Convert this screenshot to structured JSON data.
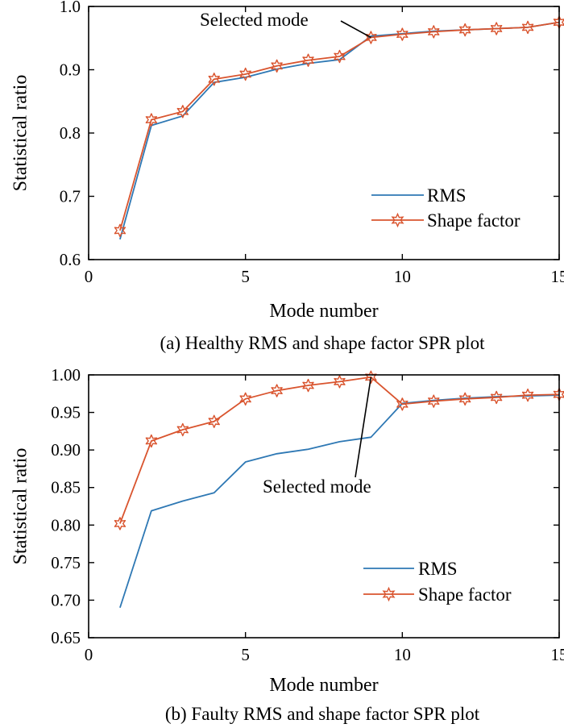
{
  "chart_data": [
    {
      "type": "line",
      "caption": "(a) Healthy RMS and shape factor SPR plot",
      "xlabel": "Mode number",
      "ylabel": "Statistical ratio",
      "xlim": [
        0,
        15
      ],
      "ylim": [
        0.6,
        1.0
      ],
      "xticks": [
        0,
        5,
        10,
        15
      ],
      "xtick_labels": [
        "0",
        "5",
        "10",
        "15"
      ],
      "yticks": [
        0.6,
        0.7,
        0.8,
        0.9,
        1.0
      ],
      "ytick_labels": [
        "0.6",
        "0.7",
        "0.8",
        "0.9",
        "1.0"
      ],
      "grid": false,
      "legend_position": "lower-right",
      "x": [
        1,
        2,
        3,
        4,
        5,
        6,
        7,
        8,
        9,
        10,
        11,
        12,
        13,
        14,
        15
      ],
      "series": [
        {
          "name": "RMS",
          "color": "#2e78b4",
          "marker": "none",
          "values": [
            0.632,
            0.812,
            0.827,
            0.88,
            0.888,
            0.901,
            0.91,
            0.916,
            0.953,
            0.957,
            0.961,
            0.963,
            0.965,
            0.967,
            0.975
          ]
        },
        {
          "name": "Shape factor",
          "color": "#d9542e",
          "marker": "star",
          "values": [
            0.646,
            0.821,
            0.834,
            0.885,
            0.893,
            0.906,
            0.915,
            0.921,
            0.951,
            0.956,
            0.96,
            0.963,
            0.965,
            0.967,
            0.975
          ]
        }
      ],
      "annotation": {
        "text": "Selected mode",
        "x": 9,
        "y": 0.951
      }
    },
    {
      "type": "line",
      "caption": "(b) Faulty RMS and shape factor SPR plot",
      "xlabel": "Mode number",
      "ylabel": "Statistical ratio",
      "xlim": [
        0,
        15
      ],
      "ylim": [
        0.65,
        1.0
      ],
      "xticks": [
        0,
        5,
        10,
        15
      ],
      "xtick_labels": [
        "0",
        "5",
        "10",
        "15"
      ],
      "yticks": [
        0.65,
        0.7,
        0.75,
        0.8,
        0.85,
        0.9,
        0.95,
        1.0
      ],
      "ytick_labels": [
        "0.65",
        "0.70",
        "0.75",
        "0.80",
        "0.85",
        "0.90",
        "0.95",
        "1.00"
      ],
      "grid": false,
      "legend_position": "lower-right",
      "x": [
        1,
        2,
        3,
        4,
        5,
        6,
        7,
        8,
        9,
        10,
        11,
        12,
        13,
        14,
        15
      ],
      "series": [
        {
          "name": "RMS",
          "color": "#2e78b4",
          "marker": "none",
          "values": [
            0.69,
            0.819,
            0.832,
            0.843,
            0.884,
            0.895,
            0.901,
            0.911,
            0.917,
            0.962,
            0.966,
            0.969,
            0.971,
            0.972,
            0.973
          ]
        },
        {
          "name": "Shape factor",
          "color": "#d9542e",
          "marker": "star",
          "values": [
            0.802,
            0.912,
            0.927,
            0.938,
            0.968,
            0.979,
            0.986,
            0.991,
            0.997,
            0.961,
            0.965,
            0.968,
            0.97,
            0.973,
            0.974
          ]
        }
      ],
      "annotation": {
        "text": "Selected mode",
        "x": 9,
        "y": 0.997
      }
    }
  ]
}
